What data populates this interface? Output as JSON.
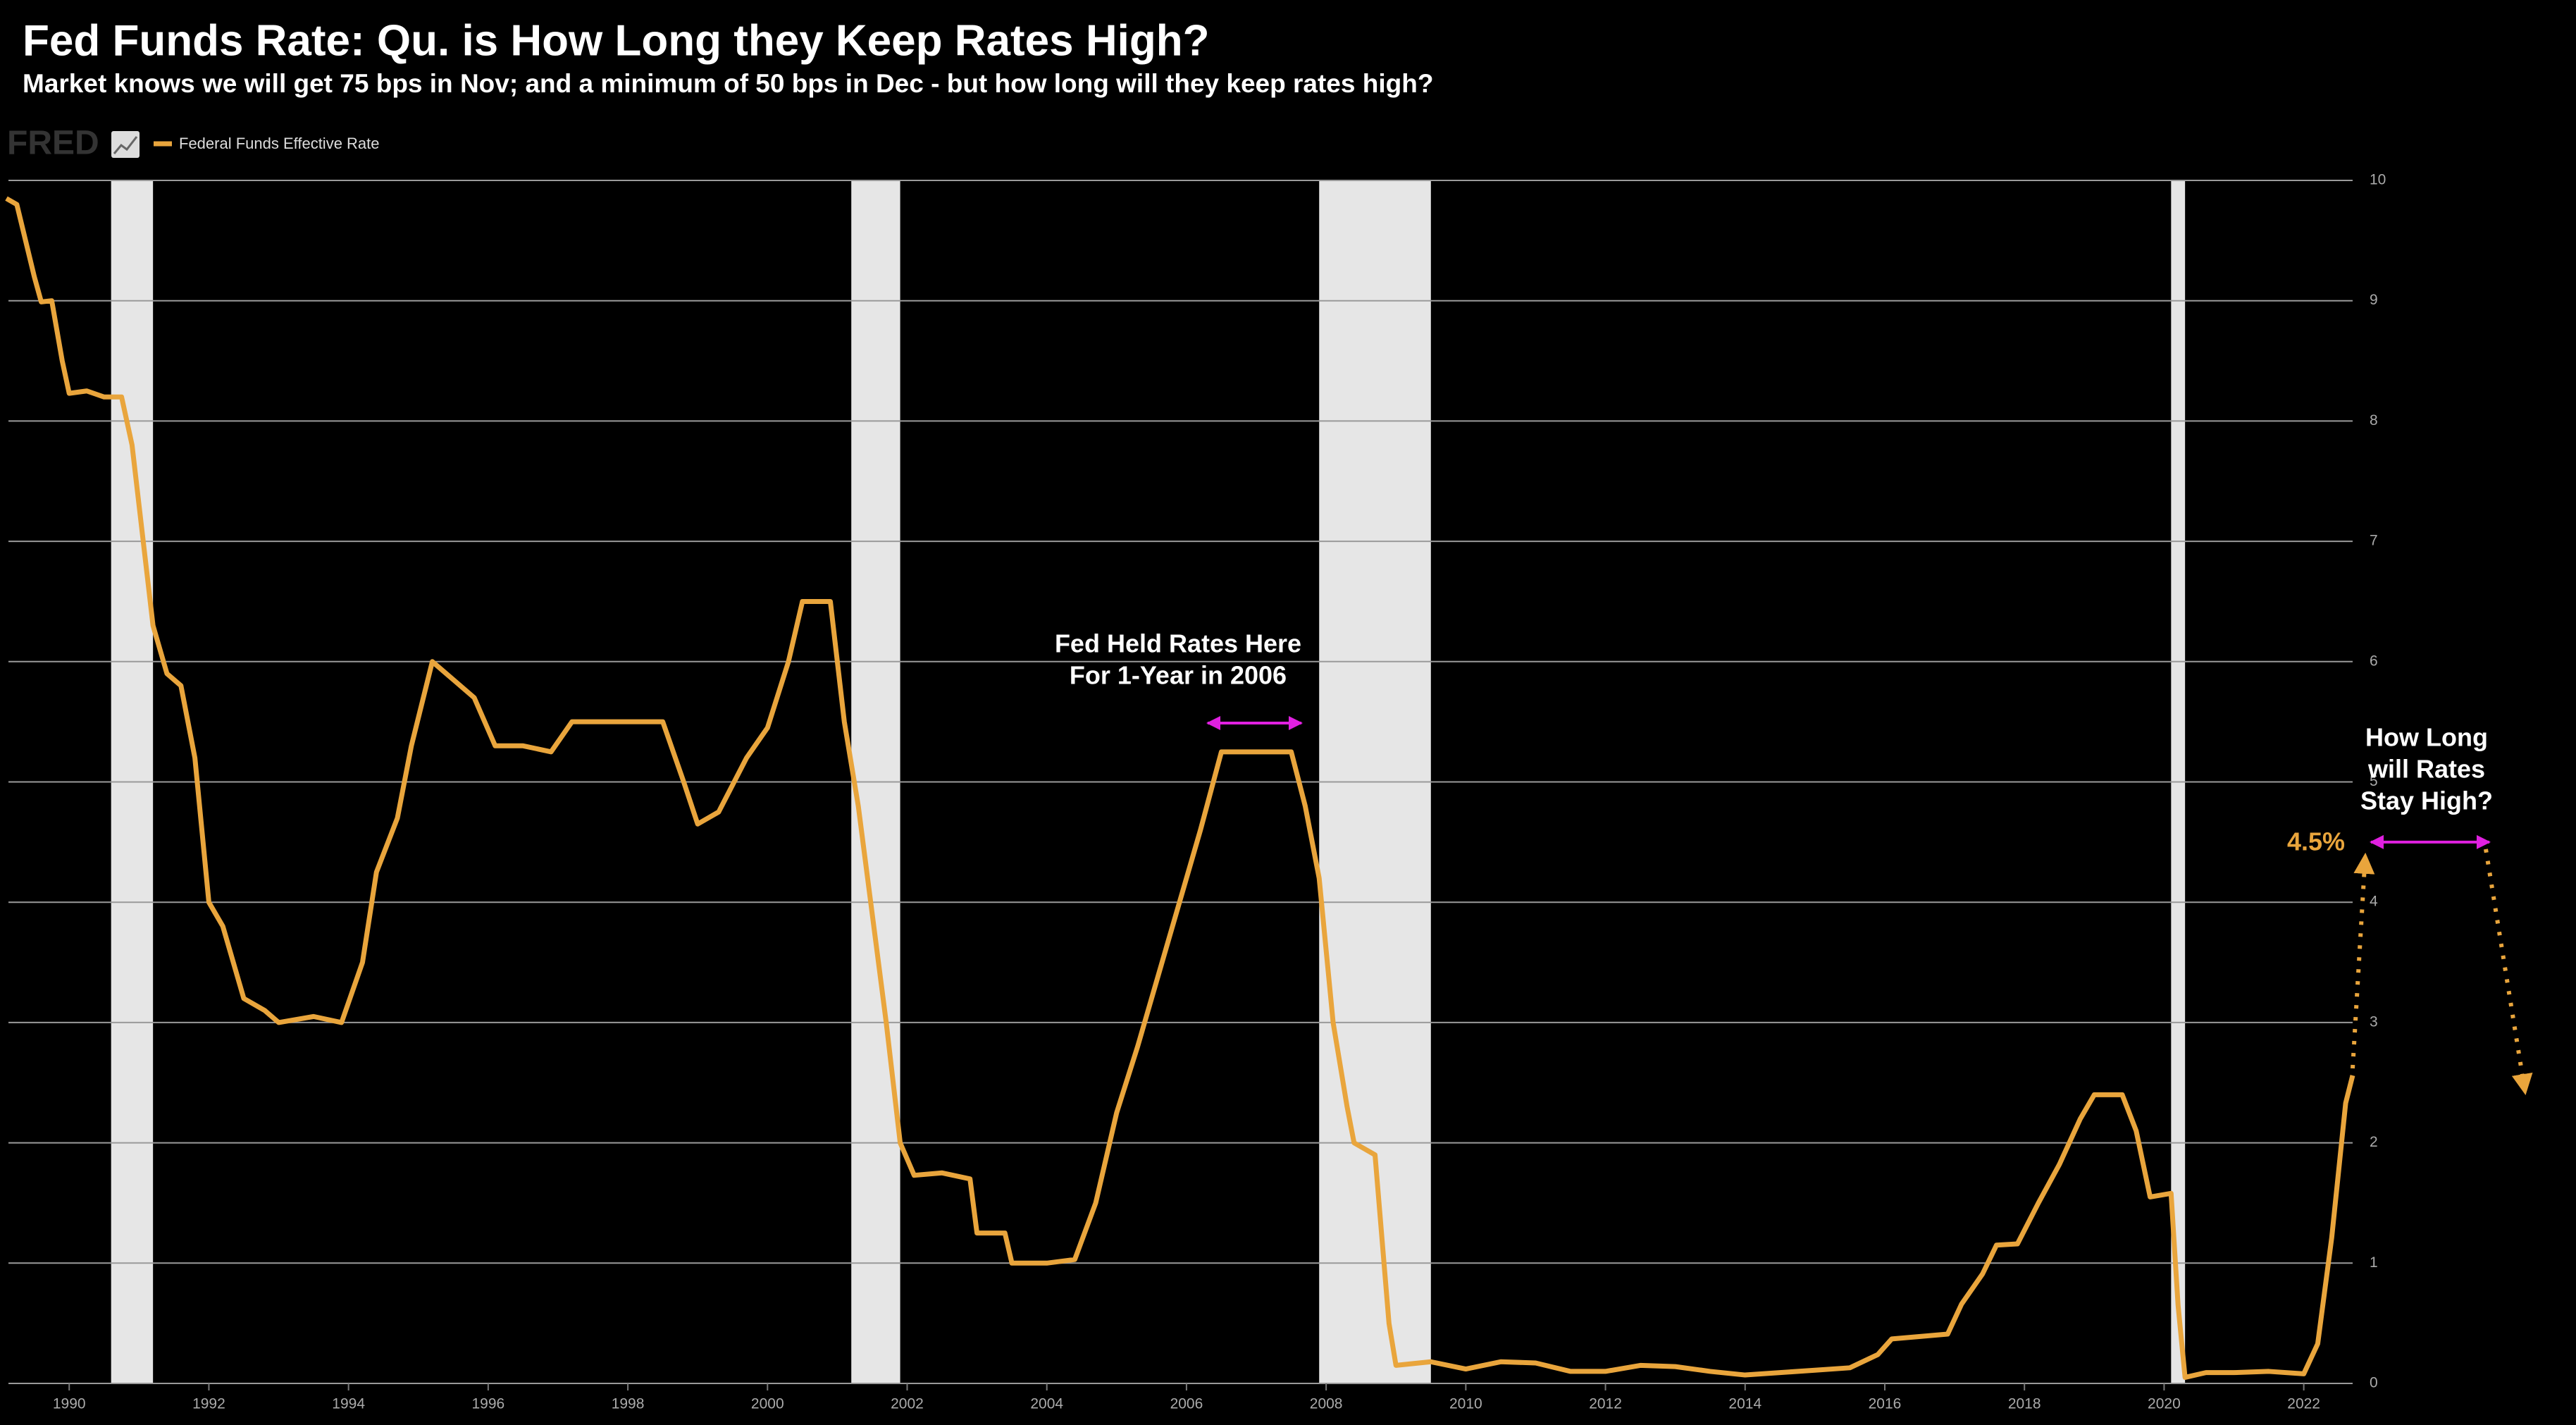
{
  "chart_data": {
    "type": "line",
    "title": "Fed Funds Rate: Qu. is How Long they Keep Rates High?",
    "subtitle": "Market knows we will get 75 bps in Nov; and a minimum of 50 bps in Dec - but how long will they keep rates high?",
    "source_logo": "FRED",
    "x": [
      1989.1,
      1989.25,
      1989.5,
      1989.6,
      1989.75,
      1989.9,
      1990.0,
      1990.25,
      1990.5,
      1990.75,
      1990.9,
      1991.0,
      1991.2,
      1991.4,
      1991.6,
      1991.8,
      1992.0,
      1992.2,
      1992.5,
      1992.8,
      1993.0,
      1993.5,
      1993.9,
      1994.2,
      1994.4,
      1994.7,
      1994.9,
      1995.2,
      1995.5,
      1995.8,
      1996.1,
      1996.5,
      1996.9,
      1997.2,
      1997.6,
      1998.0,
      1998.5,
      1998.8,
      1999.0,
      1999.3,
      1999.7,
      2000.0,
      2000.3,
      2000.5,
      2000.9,
      2001.1,
      2001.3,
      2001.5,
      2001.7,
      2001.9,
      2002.1,
      2002.5,
      2002.9,
      2003.0,
      2003.4,
      2003.5,
      2004.0,
      2004.4,
      2004.7,
      2005.0,
      2005.3,
      2005.6,
      2005.9,
      2006.2,
      2006.5,
      2007.0,
      2007.5,
      2007.7,
      2007.9,
      2008.1,
      2008.3,
      2008.4,
      2008.7,
      2008.9,
      2009.0,
      2009.5,
      2010.0,
      2010.5,
      2011.0,
      2011.5,
      2012.0,
      2012.5,
      2013.0,
      2013.5,
      2014.0,
      2014.5,
      2015.0,
      2015.5,
      2015.9,
      2016.1,
      2016.9,
      2017.1,
      2017.4,
      2017.6,
      2017.9,
      2018.2,
      2018.5,
      2018.8,
      2019.0,
      2019.4,
      2019.6,
      2019.8,
      2020.1,
      2020.2,
      2020.3,
      2020.6,
      2021.0,
      2021.5,
      2022.0,
      2022.2,
      2022.4,
      2022.6,
      2022.7
    ],
    "series": [
      {
        "name": "Federal Funds Effective Rate",
        "color": "#e9a53c",
        "values": [
          9.85,
          9.8,
          9.2,
          8.99,
          9.0,
          8.5,
          8.23,
          8.25,
          8.2,
          8.2,
          7.8,
          7.3,
          6.3,
          5.9,
          5.8,
          5.2,
          4.0,
          3.8,
          3.2,
          3.1,
          3.0,
          3.05,
          3.0,
          3.5,
          4.25,
          4.7,
          5.3,
          6.0,
          5.85,
          5.7,
          5.3,
          5.3,
          5.25,
          5.5,
          5.5,
          5.5,
          5.5,
          5.0,
          4.65,
          4.75,
          5.2,
          5.45,
          6.0,
          6.5,
          6.5,
          5.5,
          4.8,
          3.9,
          3.0,
          2.0,
          1.73,
          1.75,
          1.7,
          1.25,
          1.25,
          1.0,
          1.0,
          1.03,
          1.5,
          2.25,
          2.8,
          3.4,
          4.0,
          4.6,
          5.25,
          5.25,
          5.25,
          4.8,
          4.2,
          3.0,
          2.3,
          2.0,
          1.9,
          0.5,
          0.15,
          0.18,
          0.12,
          0.18,
          0.17,
          0.1,
          0.1,
          0.15,
          0.14,
          0.1,
          0.07,
          0.09,
          0.11,
          0.13,
          0.24,
          0.37,
          0.41,
          0.66,
          0.91,
          1.15,
          1.16,
          1.5,
          1.82,
          2.2,
          2.4,
          2.4,
          2.1,
          1.55,
          1.58,
          0.65,
          0.05,
          0.09,
          0.09,
          0.1,
          0.08,
          0.33,
          1.21,
          2.33,
          2.56
        ]
      }
    ],
    "recessions": [
      [
        1990.6,
        1991.2
      ],
      [
        2001.2,
        2001.9
      ],
      [
        2007.9,
        2009.5
      ],
      [
        2020.1,
        2020.3
      ]
    ],
    "recession_color": "#e6e6e6",
    "xlim": [
      1989.13,
      2022.7
    ],
    "xticks": [
      1990,
      1992,
      1994,
      1996,
      1998,
      2000,
      2002,
      2004,
      2006,
      2008,
      2010,
      2012,
      2014,
      2016,
      2018,
      2020,
      2022
    ],
    "ylim": [
      0,
      10
    ],
    "yticks": [
      0,
      1,
      2,
      3,
      4,
      5,
      6,
      7,
      8,
      9,
      10
    ],
    "grid": true,
    "annotations": [
      {
        "lines": [
          "Fed Held Rates Here",
          "For 1-Year in 2006"
        ]
      },
      {
        "lines": [
          "How Long",
          "will Rates",
          "Stay High?"
        ]
      },
      {
        "value": 4.5,
        "label": "4.5%"
      }
    ]
  }
}
